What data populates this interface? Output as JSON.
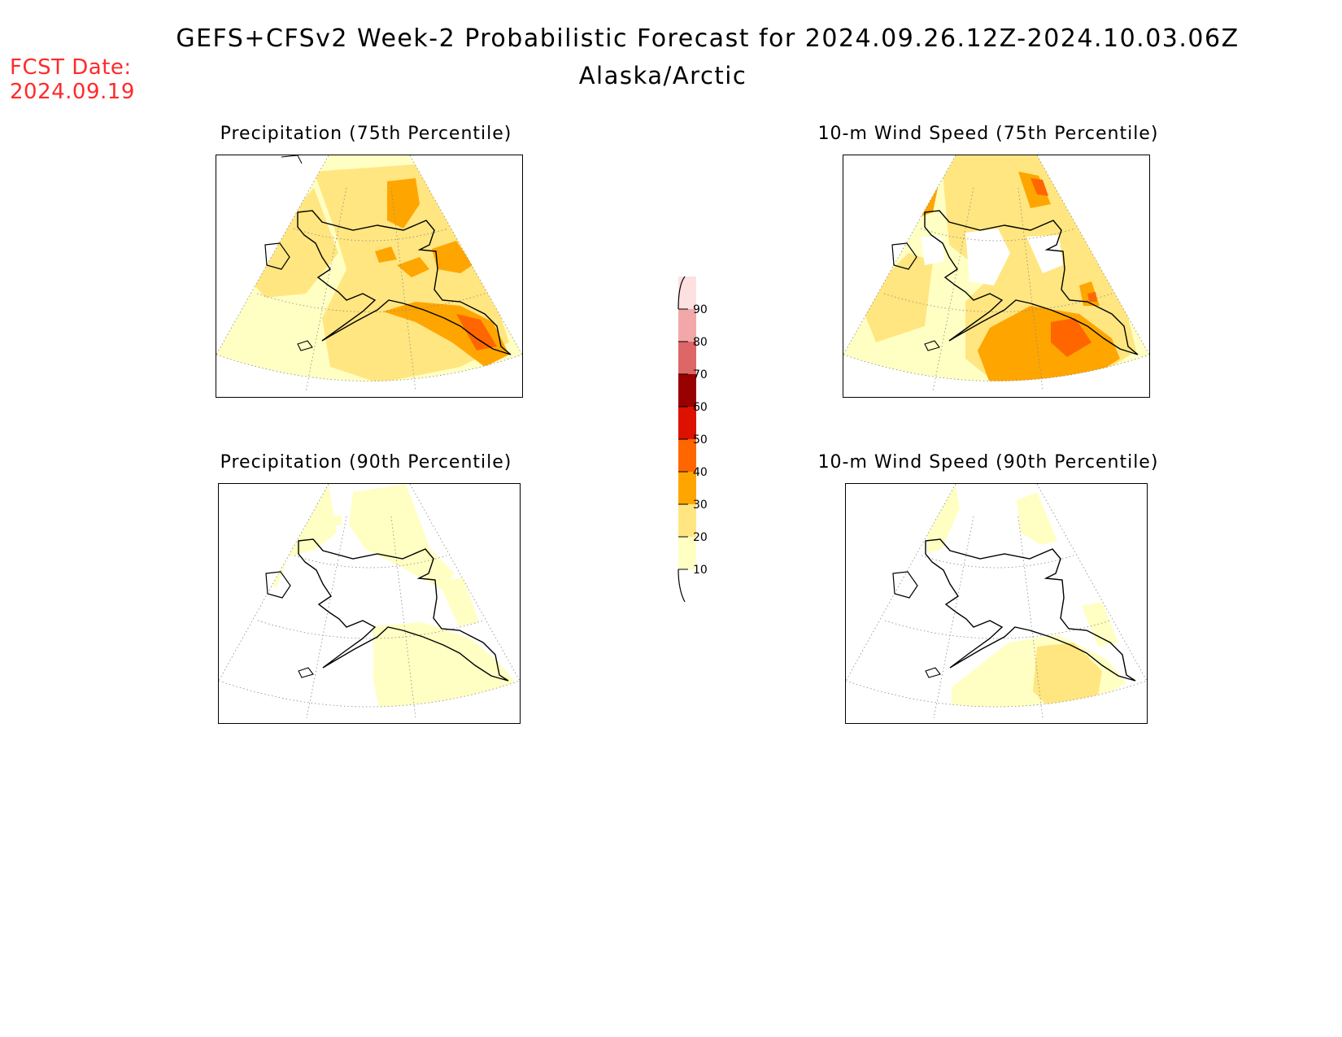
{
  "header": {
    "title": "GEFS+CFSv2 Week-2 Probabilistic Forecast for 2024.09.26.12Z-2024.10.03.06Z",
    "subtitle": "Alaska/Arctic",
    "fcst_date_label": "FCST Date:",
    "fcst_date_value": "2024.09.19"
  },
  "panels": [
    {
      "id": "precip75",
      "title": "Precipitation (75th Percentile)"
    },
    {
      "id": "wind75",
      "title": "10-m Wind Speed (75th Percentile)"
    },
    {
      "id": "precip90",
      "title": "Precipitation (90th Percentile)"
    },
    {
      "id": "wind90",
      "title": "10-m Wind Speed (90th Percentile)"
    }
  ],
  "colorbar": {
    "ticks": [
      "10",
      "20",
      "30",
      "40",
      "50",
      "60",
      "70",
      "80",
      "90"
    ],
    "colors": [
      "#ffffc4",
      "#ffe680",
      "#ffa500",
      "#ff6600",
      "#dd1100",
      "#990000",
      "#dd6666",
      "#f2a8a8",
      "#fde0e0"
    ]
  },
  "colors": {
    "fcst_date": "#ff2a2a",
    "p10": "#ffffc4",
    "p20": "#ffe680",
    "p30": "#ffa500",
    "p40": "#ff6600"
  }
}
